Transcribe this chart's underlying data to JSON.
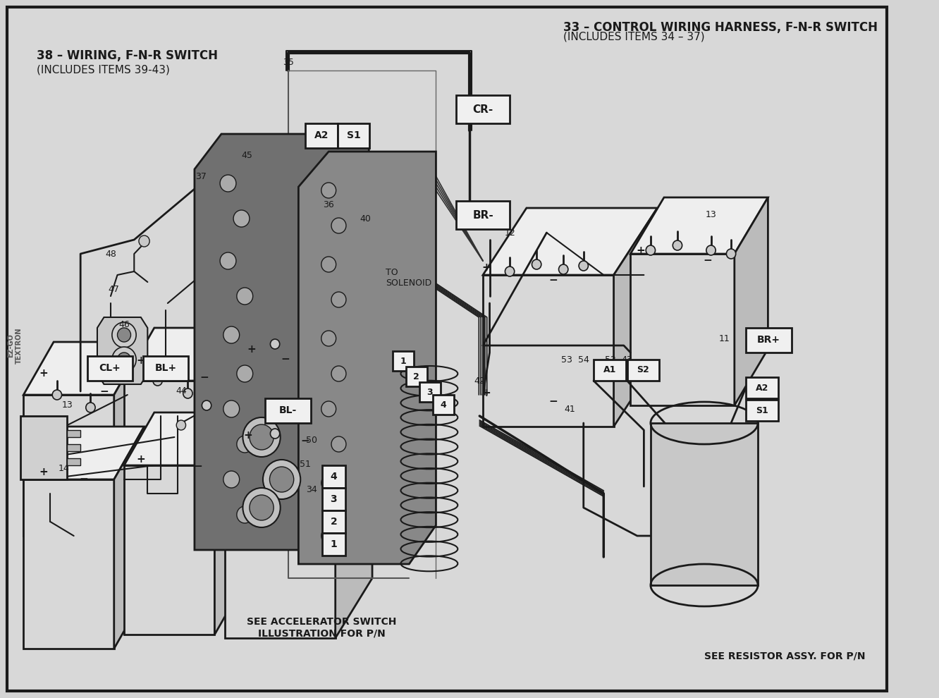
{
  "figsize": [
    13.32,
    9.9
  ],
  "dpi": 100,
  "bg_color": "#d4d4d4",
  "inner_bg": "#d8d8d8",
  "line_color": "#1a1a1a",
  "border_lw": 2.0,
  "top_right_label1": "33 – CONTROL WIRING HARNESS, F-N-R SWITCH",
  "top_right_label2": "(INCLUDES ITEMS 34 – 37)",
  "top_left_label1": "38 – WIRING, F-N-R SWITCH",
  "top_left_label2": "(INCLUDES ITEMS 39-43)",
  "bottom_left_label": "SEE ACCELERATOR SWITCH\nILLUSTRATION FOR P/N",
  "bottom_right_label": "SEE RESISTOR ASSY. FOR P/N",
  "to_solenoid": "TO\nSOLENOID",
  "ez_go_text": "EZ-GO\nTEXTRON"
}
